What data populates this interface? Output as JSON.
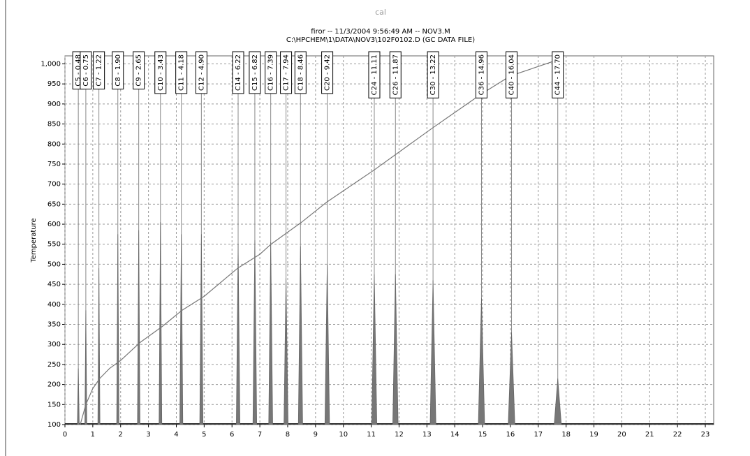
{
  "chart_data": {
    "type": "line",
    "title": "cal",
    "subtitle": [
      "firor -- 11/3/2004 9:56:49 AM -- NOV3.M",
      "C:\\HPCHEM\\1\\DATA\\NOV3\\102F0102.D (GC DATA FILE)"
    ],
    "y_label": "Temperature",
    "xlim": [
      0,
      23.3
    ],
    "ylim": [
      100,
      1020
    ],
    "xticks": [
      0,
      1,
      2,
      3,
      4,
      5,
      6,
      7,
      8,
      9,
      10,
      11,
      12,
      13,
      14,
      15,
      16,
      17,
      18,
      19,
      20,
      21,
      22,
      23
    ],
    "yticks": [
      100,
      150,
      200,
      250,
      300,
      350,
      400,
      450,
      500,
      550,
      600,
      650,
      700,
      750,
      800,
      850,
      900,
      950,
      {
        "value": 1000,
        "label": "1,000"
      }
    ],
    "grid": true,
    "series": [
      {
        "color": "#777777",
        "x": [
          0.55,
          0.75,
          1.0,
          1.25,
          1.6,
          2.0,
          2.7,
          3.5,
          4.2,
          5.0,
          6.2,
          7.0,
          7.4,
          8.0,
          8.5,
          9.4,
          11.1,
          11.9,
          13.2,
          14.96,
          16.0,
          17.7
        ],
        "values": [
          100,
          150,
          190,
          215,
          240,
          260,
          305,
          345,
          385,
          420,
          490,
          525,
          550,
          580,
          605,
          655,
          735,
          775,
          840,
          925,
          970,
          1010
        ]
      }
    ],
    "peaks": [
      {
        "label": "C5 - 0.48",
        "time": 0.48,
        "height": 240
      },
      {
        "label": "C6 - 0.75",
        "time": 0.75,
        "height": 385
      },
      {
        "label": "C7 - 1.22",
        "time": 1.22,
        "height": 490
      },
      {
        "label": "C8 - 1.90",
        "time": 1.9,
        "height": 575
      },
      {
        "label": "C9 - 2.65",
        "time": 2.65,
        "height": 585
      },
      {
        "label": "C10 - 3.43",
        "time": 3.43,
        "height": 605
      },
      {
        "label": "C11 - 4.18",
        "time": 4.18,
        "height": 575
      },
      {
        "label": "C12 - 4.90",
        "time": 4.9,
        "height": 575
      },
      {
        "label": "C14 - 6.22",
        "time": 6.22,
        "height": 550
      },
      {
        "label": "C15 - 6.82",
        "time": 6.82,
        "height": 560
      },
      {
        "label": "C16 - 7.39",
        "time": 7.39,
        "height": 555
      },
      {
        "label": "C17 - 7.94",
        "time": 7.94,
        "height": 465
      },
      {
        "label": "C18 - 8.46",
        "time": 8.46,
        "height": 545
      },
      {
        "label": "C20 - 9.42",
        "time": 9.42,
        "height": 500
      },
      {
        "label": "C24 - 11.11",
        "time": 11.11,
        "height": 475
      },
      {
        "label": "C26 - 11.87",
        "time": 11.87,
        "height": 475
      },
      {
        "label": "C30 - 13.22",
        "time": 13.22,
        "height": 460
      },
      {
        "label": "C36 - 14.96",
        "time": 14.96,
        "height": 415
      },
      {
        "label": "C40 - 16.04",
        "time": 16.04,
        "height": 330
      },
      {
        "label": "C44 - 17.70",
        "time": 17.7,
        "height": 215
      }
    ]
  }
}
